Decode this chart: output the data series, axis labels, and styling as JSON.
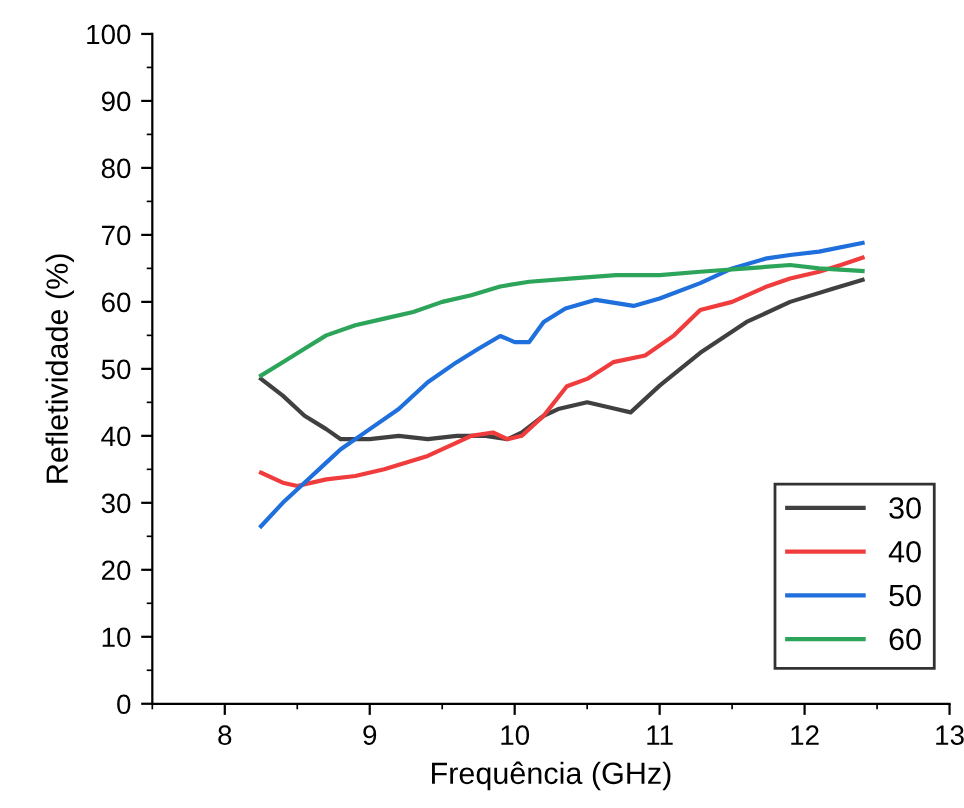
{
  "chart_data": {
    "type": "line",
    "xlabel": "Frequência (GHz)",
    "ylabel": "Refletividade (%)",
    "xlim": [
      7.5,
      13
    ],
    "ylim": [
      0,
      100
    ],
    "xticks": [
      8,
      9,
      10,
      11,
      12,
      13
    ],
    "yticks": [
      0,
      10,
      20,
      30,
      40,
      50,
      60,
      70,
      80,
      90,
      100
    ],
    "grid": false,
    "legend": "bottom right",
    "marker": "none",
    "line_style": "solid",
    "series": [
      {
        "name": "30",
        "color": "#404040",
        "x": [
          8.25,
          8.4,
          8.55,
          8.7,
          8.8,
          9.0,
          9.2,
          9.4,
          9.6,
          9.8,
          9.95,
          10.05,
          10.2,
          10.3,
          10.5,
          10.7,
          10.8,
          11.0,
          11.28,
          11.6,
          11.9,
          12.2,
          12.4
        ],
        "values": [
          48.5,
          46,
          43,
          41,
          39.5,
          39.5,
          40,
          39.5,
          40,
          40,
          39.5,
          40.5,
          43,
          44,
          45,
          44,
          43.5,
          47.5,
          52.4,
          57,
          60,
          62,
          63.3
        ]
      },
      {
        "name": "40",
        "color": "#f03c3c",
        "x": [
          8.25,
          8.4,
          8.5,
          8.7,
          8.9,
          9.1,
          9.4,
          9.6,
          9.7,
          9.85,
          9.95,
          10.05,
          10.2,
          10.36,
          10.5,
          10.68,
          10.9,
          11.1,
          11.28,
          11.5,
          11.74,
          11.9,
          12.1,
          12.25,
          12.4
        ],
        "values": [
          34.5,
          33,
          32.5,
          33.5,
          34,
          35,
          37,
          39,
          40,
          40.5,
          39.5,
          40,
          43,
          47.4,
          48.5,
          51,
          52,
          55,
          58.8,
          60,
          62.3,
          63.5,
          64.5,
          65.5,
          66.6
        ]
      },
      {
        "name": "50",
        "color": "#1f6fdc",
        "x": [
          8.25,
          8.4,
          8.55,
          8.7,
          8.8,
          9.0,
          9.2,
          9.4,
          9.6,
          9.75,
          9.9,
          10.0,
          10.1,
          10.2,
          10.35,
          10.56,
          10.82,
          11.0,
          11.28,
          11.5,
          11.74,
          11.9,
          12.1,
          12.4
        ],
        "values": [
          26.5,
          30,
          33,
          36,
          38,
          41,
          44,
          48,
          51,
          53,
          54.9,
          54,
          54,
          57,
          59,
          60.3,
          59.4,
          60.5,
          62.8,
          65,
          66.5,
          67,
          67.5,
          68.8
        ]
      },
      {
        "name": "60",
        "color": "#2ca55a",
        "x": [
          8.25,
          8.4,
          8.55,
          8.7,
          8.9,
          9.1,
          9.3,
          9.5,
          9.7,
          9.9,
          10.1,
          10.4,
          10.7,
          11.0,
          11.28,
          11.6,
          11.9,
          12.1,
          12.4
        ],
        "values": [
          49,
          51,
          53,
          55,
          56.5,
          57.5,
          58.5,
          60,
          61,
          62.3,
          63,
          63.5,
          64,
          64,
          64.5,
          65,
          65.5,
          65,
          64.6
        ]
      }
    ]
  }
}
